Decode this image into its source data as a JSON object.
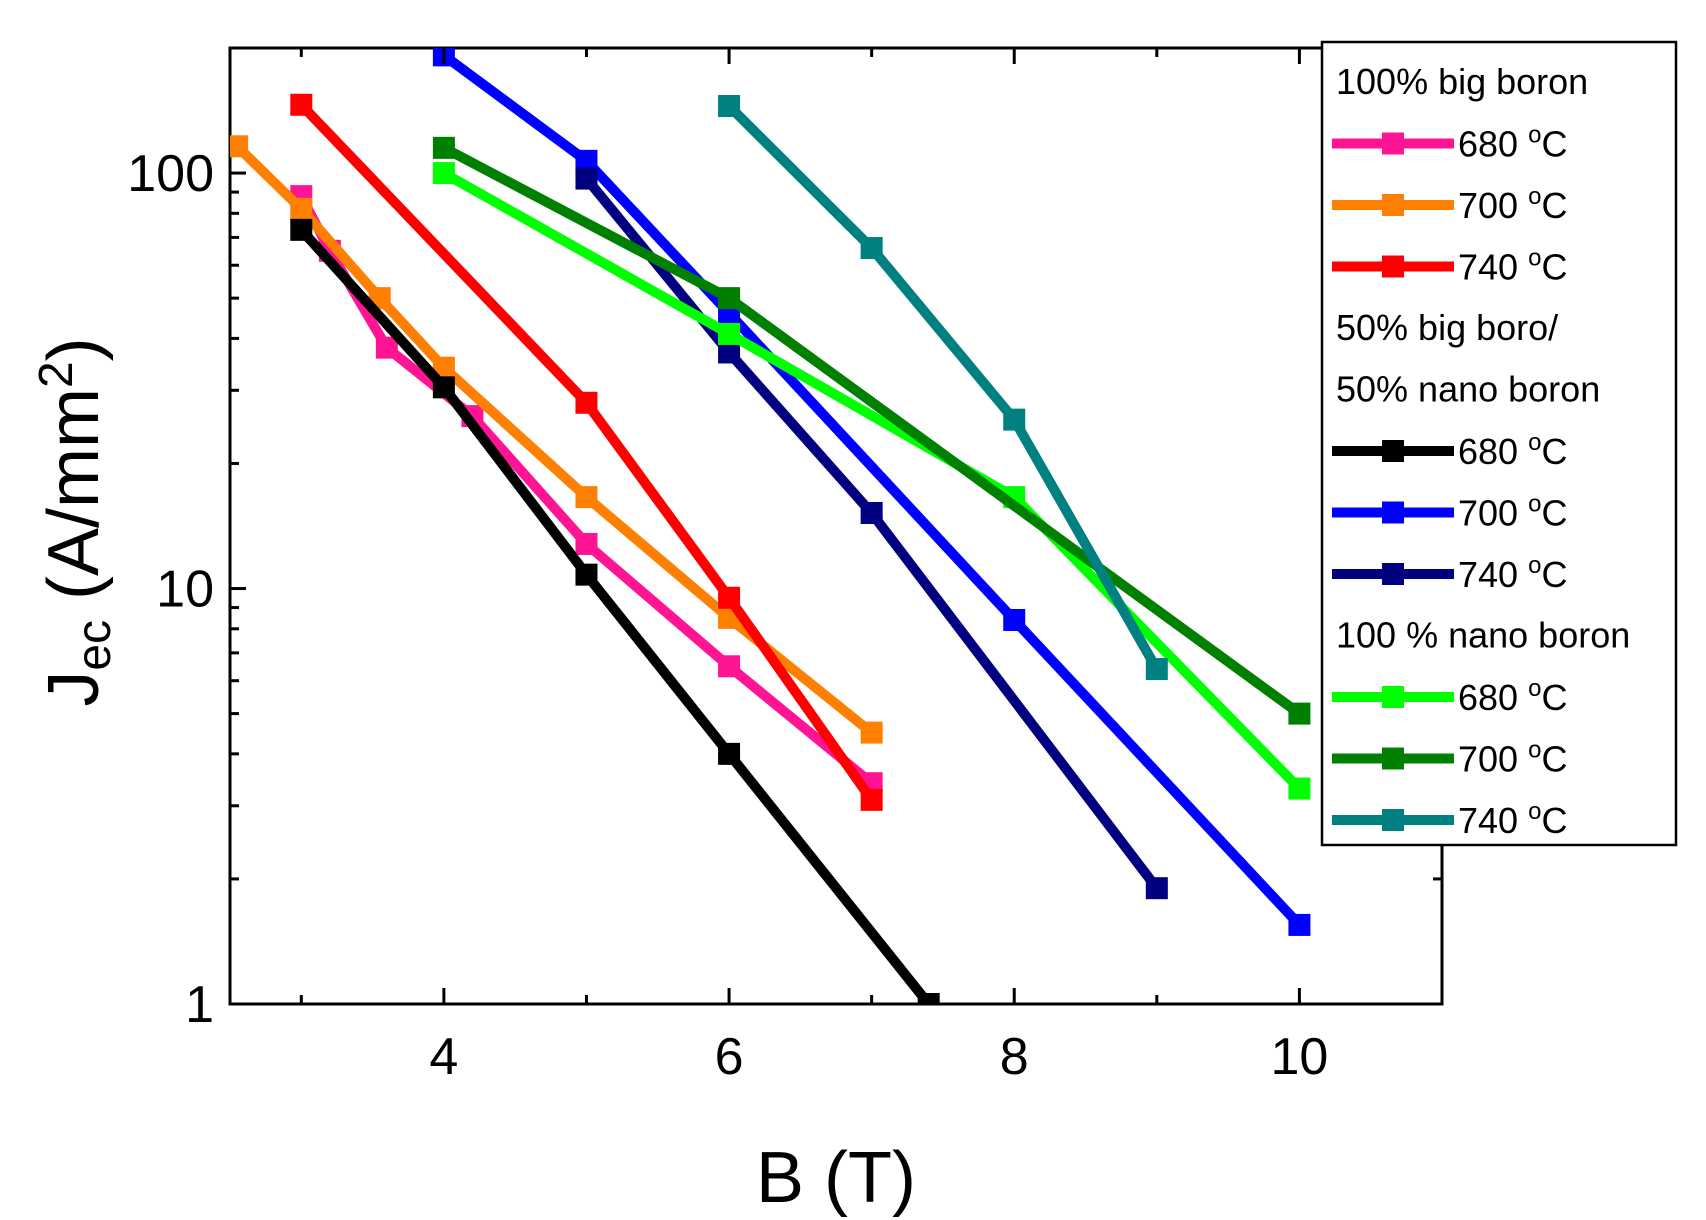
{
  "chart_data": {
    "type": "line",
    "xlabel": "B (T)",
    "ylabel_main": "J",
    "ylabel_sub": "ec",
    "ylabel_unit_pre": " (A/mm",
    "ylabel_unit_sup": "2",
    "ylabel_unit_post": ")",
    "xlim": [
      2.5,
      11
    ],
    "ylim": [
      1,
      200
    ],
    "yscale": "log",
    "x_ticks": [
      4,
      6,
      8,
      10
    ],
    "x_tick_labels": [
      "4",
      "6",
      "8",
      "10"
    ],
    "y_ticks": [
      1,
      10,
      100
    ],
    "y_tick_labels": [
      "1",
      "10",
      "100"
    ],
    "legend": {
      "position": "top-right",
      "groups": [
        {
          "title_lines": [
            "100% big boron"
          ],
          "series": [
            0,
            1,
            2
          ]
        },
        {
          "title_lines": [
            "50% big boro/",
            "50% nano boron"
          ],
          "series": [
            3,
            4,
            5
          ]
        },
        {
          "title_lines": [
            "100 % nano boron"
          ],
          "series": [
            6,
            7,
            8
          ]
        }
      ]
    },
    "series": [
      {
        "name": "680 °C",
        "label_num": "680 ",
        "label_sup": "o",
        "label_unit": "C",
        "group": "100% big boron",
        "color": "#ff1493",
        "x": [
          3,
          3.2,
          3.6,
          4.2,
          5,
          6,
          7
        ],
        "y": [
          88,
          65,
          38,
          26,
          12.8,
          6.5,
          3.4
        ]
      },
      {
        "name": "700 °C",
        "label_num": "700 ",
        "label_sup": "o",
        "label_unit": "C",
        "group": "100% big boron",
        "color": "#ff8000",
        "x": [
          2.55,
          3,
          3.55,
          4,
          5,
          6,
          7
        ],
        "y": [
          116,
          82,
          50,
          34,
          16.6,
          8.5,
          4.5
        ]
      },
      {
        "name": "740 °C",
        "label_num": "740 ",
        "label_sup": "o",
        "label_unit": "C",
        "group": "100% big boron",
        "color": "#ff0000",
        "x": [
          3,
          5,
          6,
          7
        ],
        "y": [
          146,
          28,
          9.5,
          3.1
        ]
      },
      {
        "name": "680 °C",
        "label_num": "680 ",
        "label_sup": "o",
        "label_unit": "C",
        "group": "50% big boro/ 50% nano boron",
        "color": "#000000",
        "x": [
          3,
          4,
          5,
          6,
          7.4
        ],
        "y": [
          73,
          30.5,
          10.8,
          4.0,
          1.0
        ]
      },
      {
        "name": "700 °C",
        "label_num": "700 ",
        "label_sup": "o",
        "label_unit": "C",
        "group": "50% big boro/ 50% nano boron",
        "color": "#0000ff",
        "x": [
          4,
          5,
          6,
          8,
          10
        ],
        "y": [
          192,
          107,
          46,
          8.4,
          1.55
        ]
      },
      {
        "name": "740 °C",
        "label_num": "740 ",
        "label_sup": "o",
        "label_unit": "C",
        "group": "50% big boro/ 50% nano boron",
        "color": "#000080",
        "x": [
          5,
          6,
          7,
          9
        ],
        "y": [
          97,
          37,
          15.2,
          1.9
        ]
      },
      {
        "name": "680 °C",
        "label_num": "680 ",
        "label_sup": "o",
        "label_unit": "C",
        "group": "100 % nano boron",
        "color": "#00ff00",
        "x": [
          4,
          6,
          8,
          10
        ],
        "y": [
          100,
          41,
          16.6,
          3.3
        ]
      },
      {
        "name": "700 °C",
        "label_num": "700 ",
        "label_sup": "o",
        "label_unit": "C",
        "group": "100 % nano boron",
        "color": "#008000",
        "x": [
          4,
          6,
          10
        ],
        "y": [
          115,
          50,
          5.0
        ]
      },
      {
        "name": "740 °C",
        "label_num": "740 ",
        "label_sup": "o",
        "label_unit": "C",
        "group": "100 % nano boron",
        "color": "#008080",
        "x": [
          6,
          7,
          8,
          9
        ],
        "y": [
          145,
          66,
          25.5,
          6.4
        ]
      }
    ]
  }
}
